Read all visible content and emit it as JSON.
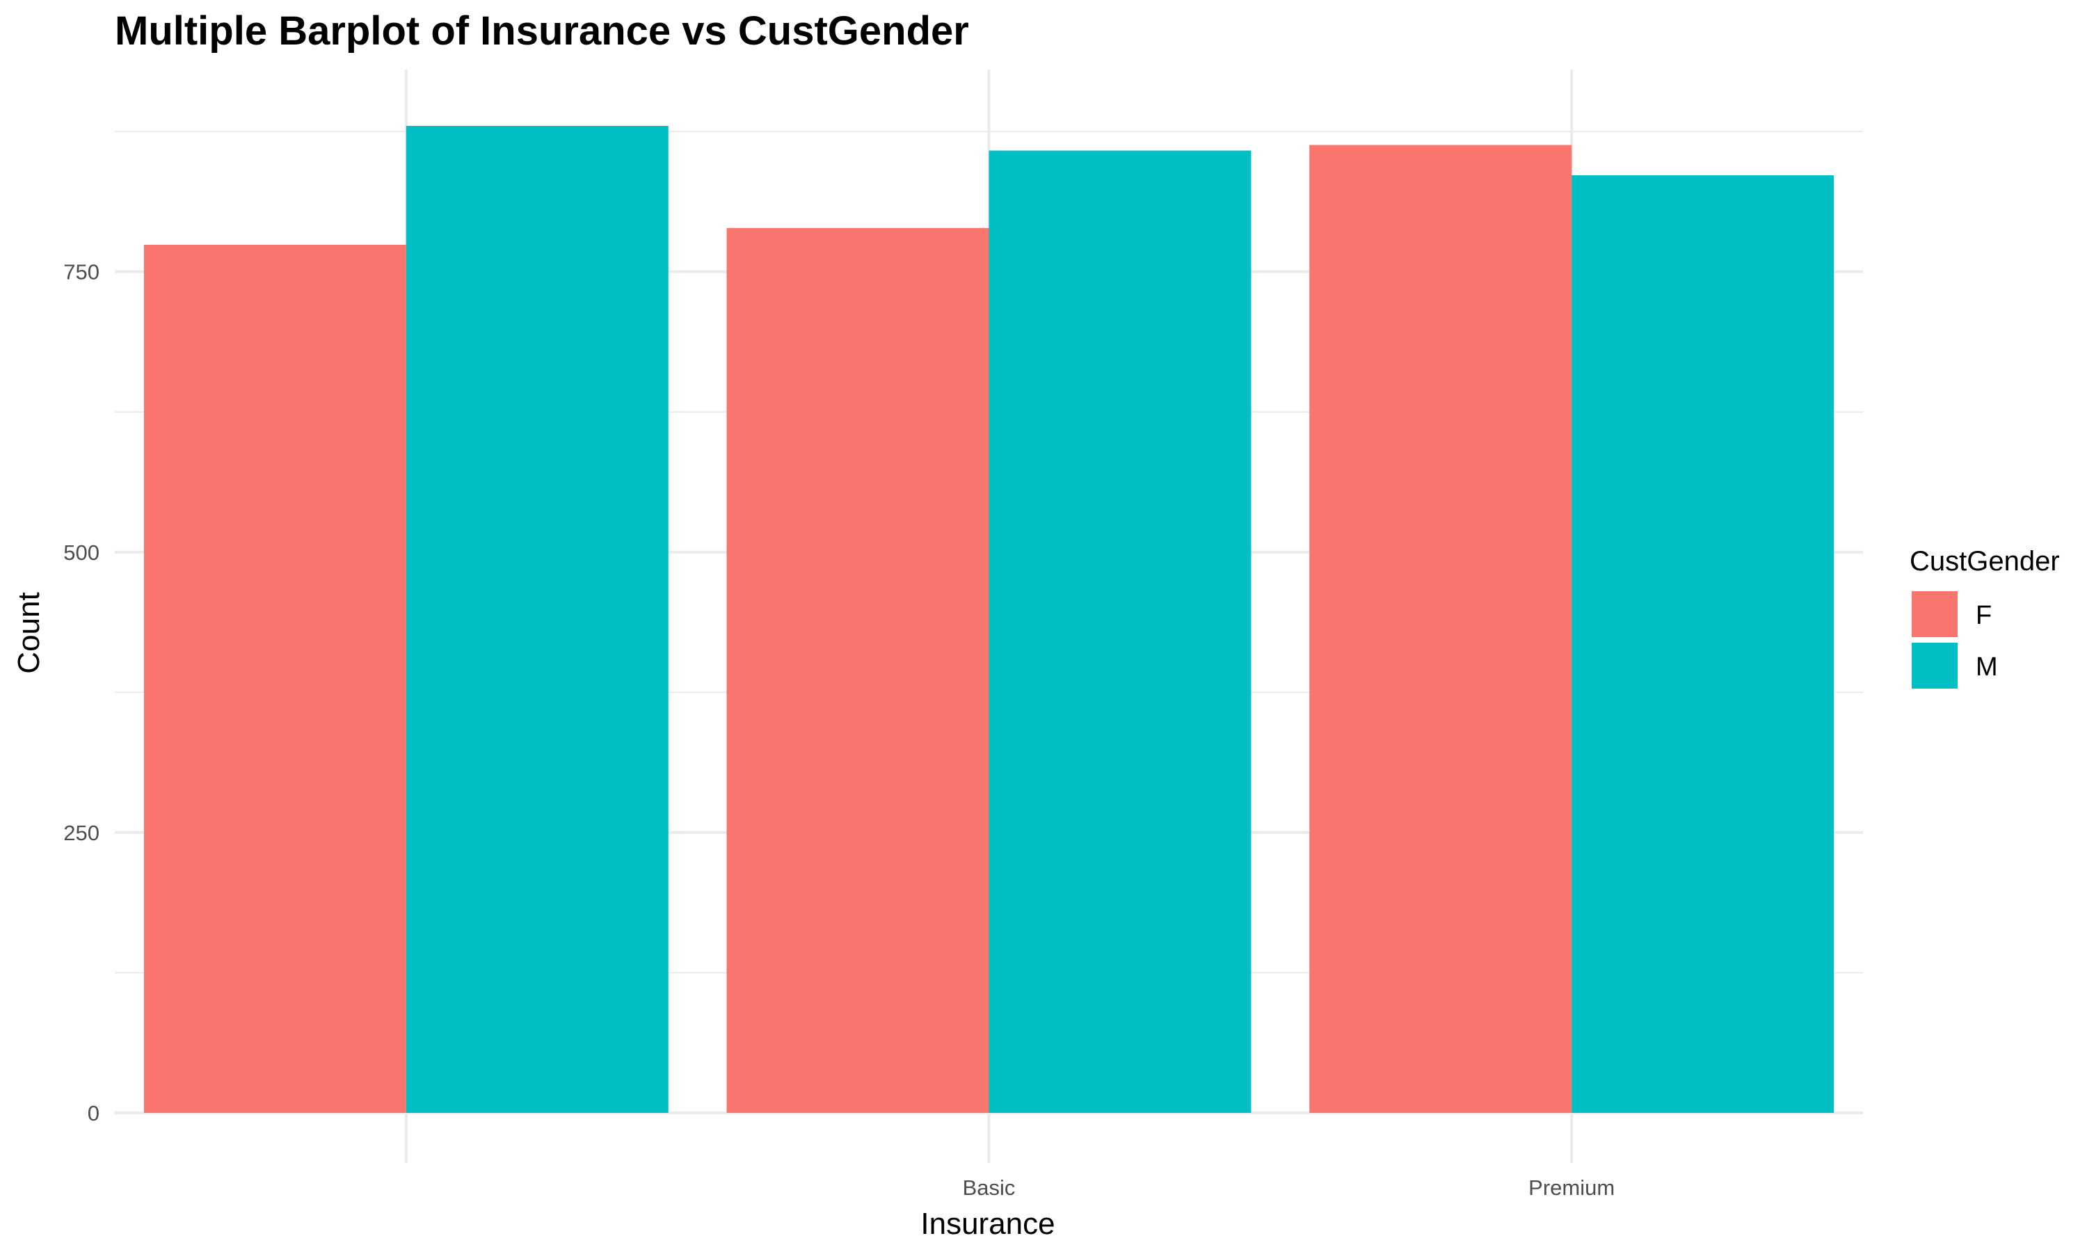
{
  "chart_data": {
    "type": "bar",
    "title": "Multiple Barplot of Insurance vs CustGender",
    "xlabel": "Insurance",
    "ylabel": "Count",
    "categories": [
      "",
      "Basic",
      "Premium"
    ],
    "series": [
      {
        "name": "F",
        "color": "#F8766D",
        "values": [
          774,
          789,
          863
        ]
      },
      {
        "name": "M",
        "color": "#00BFC4",
        "values": [
          880,
          858,
          836
        ]
      }
    ],
    "ylim": [
      0,
      880
    ],
    "yticks": [
      0,
      250,
      500,
      750
    ],
    "grid": true,
    "legend": {
      "title": "CustGender",
      "position": "right",
      "items": [
        "F",
        "M"
      ]
    }
  }
}
